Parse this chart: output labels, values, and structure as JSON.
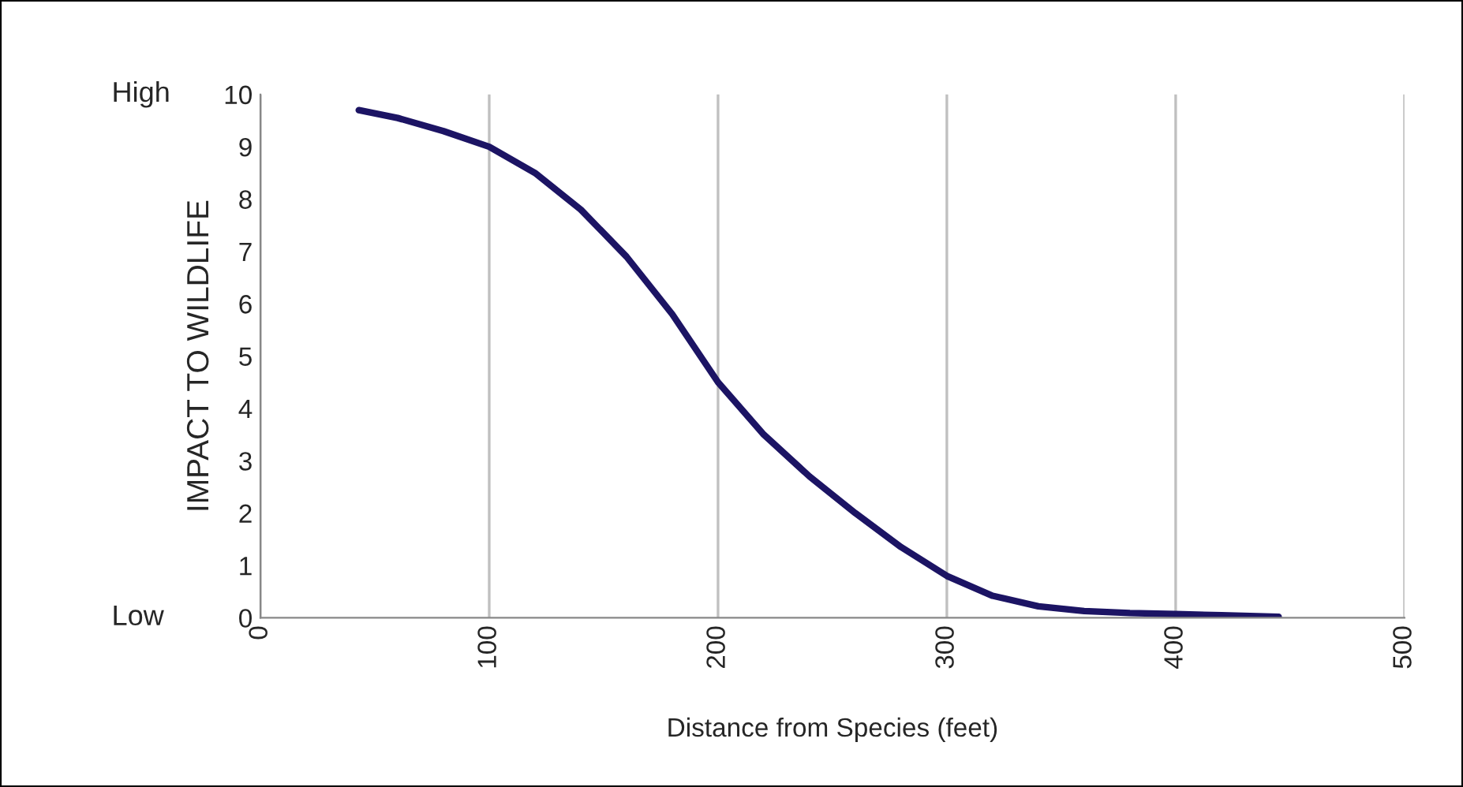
{
  "chart_data": {
    "type": "line",
    "xlabel": "Distance from Species (feet)",
    "ylabel": "IMPACT TO WILDLIFE",
    "annotations": [
      "High",
      "Low"
    ],
    "x": [
      43,
      60,
      80,
      100,
      120,
      140,
      160,
      180,
      200,
      220,
      240,
      260,
      280,
      300,
      320,
      340,
      360,
      380,
      400,
      420,
      445
    ],
    "series": [
      {
        "color": "#1c1464",
        "values": [
          9.7,
          9.55,
          9.3,
          9.0,
          8.5,
          7.8,
          6.9,
          5.8,
          4.5,
          3.5,
          2.7,
          2.0,
          1.35,
          0.8,
          0.42,
          0.22,
          0.13,
          0.09,
          0.07,
          0.05,
          0.02
        ]
      }
    ],
    "xlim": [
      0,
      500
    ],
    "xticks": [
      0,
      100,
      200,
      300,
      400,
      500
    ],
    "ylim": [
      0,
      10
    ],
    "yticks": [
      0,
      1,
      2,
      3,
      4,
      5,
      6,
      7,
      8,
      9,
      10
    ],
    "grid": "x",
    "legend": false,
    "marker": "none",
    "line_style": "solid"
  }
}
